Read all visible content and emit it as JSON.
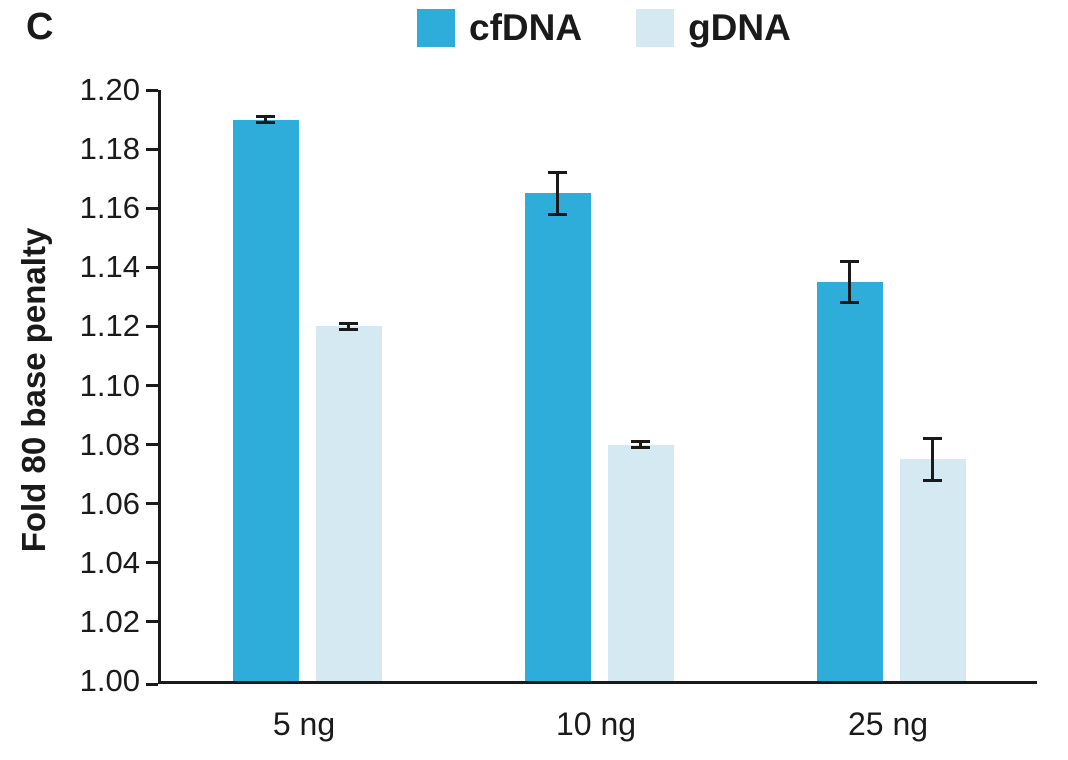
{
  "figure": {
    "panel_label": "C",
    "background": "#ffffff"
  },
  "chart_data": {
    "type": "bar",
    "title": "",
    "categories": [
      "5 ng",
      "10 ng",
      "25 ng"
    ],
    "series": [
      {
        "name": "cfDNA",
        "color": "#2fadda",
        "values": [
          1.19,
          1.165,
          1.135
        ],
        "errors": [
          0.001,
          0.007,
          0.007
        ]
      },
      {
        "name": "gDNA",
        "color": "#d4e9f2",
        "values": [
          1.12,
          1.08,
          1.075
        ],
        "errors": [
          0.001,
          0.001,
          0.007
        ]
      }
    ],
    "xlabel": "",
    "ylabel": "Fold 80 base penalty",
    "ylim": [
      1.0,
      1.2
    ],
    "yticks": [
      1.0,
      1.02,
      1.04,
      1.06,
      1.08,
      1.1,
      1.12,
      1.14,
      1.16,
      1.18,
      1.2
    ],
    "ytick_labels": [
      "1.00",
      "1.02",
      "1.04",
      "1.06",
      "1.08",
      "1.10",
      "1.12",
      "1.14",
      "1.16",
      "1.18",
      "1.20"
    ],
    "grid": false,
    "legend_position": "top-center",
    "error_bars": true,
    "colors": {
      "axis": "#1a1a1a",
      "text": "#1a1a1a",
      "error_bar": "#1a1a1a"
    }
  }
}
